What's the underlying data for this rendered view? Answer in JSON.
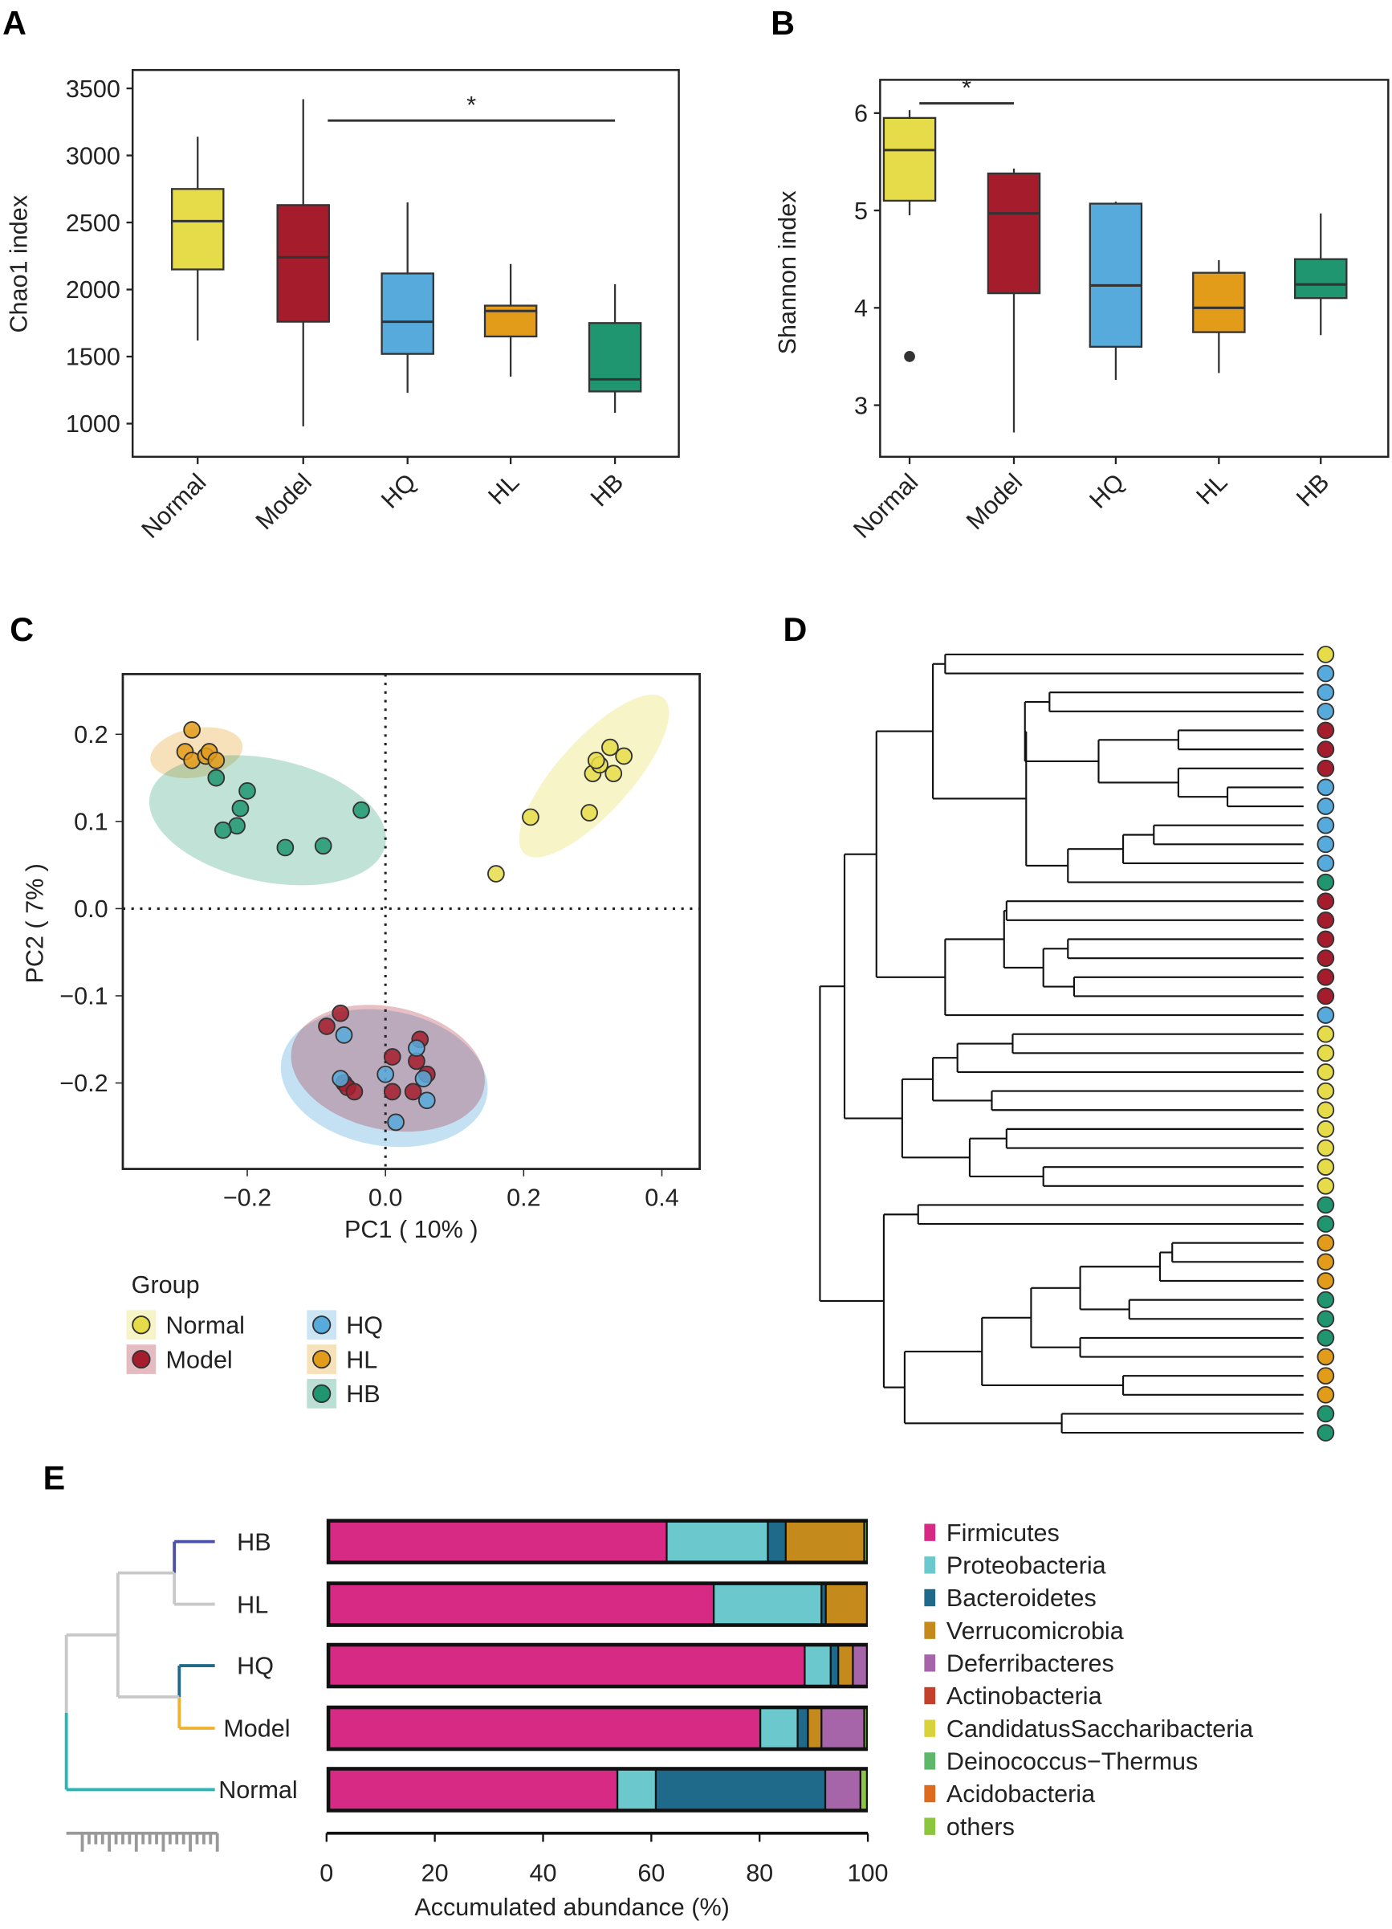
{
  "panel_labels": {
    "a": "A",
    "b": "B",
    "c": "C",
    "d": "D",
    "e": "E"
  },
  "groups": [
    "Normal",
    "Model",
    "HQ",
    "HL",
    "HB"
  ],
  "group_colors": {
    "Normal": "#e6dc4a",
    "Model": "#a51d2d",
    "HQ": "#57aadc",
    "HL": "#e39b1a",
    "HB": "#1f9670"
  },
  "chart_data": [
    {
      "type": "box",
      "panel": "A",
      "ylabel": "Chao1 index",
      "yticks": [
        1000,
        1500,
        2000,
        2500,
        3000,
        3500
      ],
      "ylim": [
        880,
        3650
      ],
      "categories": [
        "Normal",
        "Model",
        "HQ",
        "HL",
        "HB"
      ],
      "boxes": [
        {
          "min": 1620,
          "q1": 2150,
          "median": 2510,
          "q3": 2750,
          "max": 3140
        },
        {
          "min": 980,
          "q1": 1760,
          "median": 2240,
          "q3": 2630,
          "max": 3420
        },
        {
          "min": 1230,
          "q1": 1520,
          "median": 1760,
          "q3": 2120,
          "max": 2650
        },
        {
          "min": 1350,
          "q1": 1650,
          "median": 1840,
          "q3": 1880,
          "max": 2190
        },
        {
          "min": 1080,
          "q1": 1240,
          "median": 1330,
          "q3": 1750,
          "max": 2040
        }
      ],
      "outliers": [],
      "significance": {
        "from": "Model",
        "to": "HB",
        "y": 3260,
        "label": "*"
      }
    },
    {
      "type": "box",
      "panel": "B",
      "ylabel": "Shannon index",
      "yticks": [
        3,
        4,
        5,
        6
      ],
      "ylim": [
        2.5,
        6.35
      ],
      "categories": [
        "Normal",
        "Model",
        "HQ",
        "HL",
        "HB"
      ],
      "boxes": [
        {
          "min": 4.95,
          "q1": 5.1,
          "median": 5.62,
          "q3": 5.95,
          "max": 6.03
        },
        {
          "min": 2.72,
          "q1": 4.15,
          "median": 4.97,
          "q3": 5.38,
          "max": 5.43
        },
        {
          "min": 3.26,
          "q1": 3.6,
          "median": 4.23,
          "q3": 5.07,
          "max": 5.09
        },
        {
          "min": 3.33,
          "q1": 3.75,
          "median": 4.0,
          "q3": 4.36,
          "max": 4.49
        },
        {
          "min": 3.72,
          "q1": 4.1,
          "median": 4.24,
          "q3": 4.5,
          "max": 4.97
        }
      ],
      "outliers": [
        {
          "group": "Normal",
          "value": 3.5
        }
      ],
      "significance": {
        "from": "Normal",
        "to": "Model",
        "y": 6.1,
        "label": "*"
      }
    },
    {
      "type": "scatter",
      "panel": "C",
      "xlabel": "PC1 ( 10% )",
      "ylabel": "PC2 ( 7% )",
      "xticks": [
        -0.2,
        0.0,
        0.2,
        0.4
      ],
      "yticks": [
        -0.2,
        -0.1,
        0.0,
        0.1,
        0.2
      ],
      "xtick_labels": [
        "−0.2",
        "0.0",
        "0.2",
        "0.4"
      ],
      "ytick_labels": [
        "−0.2",
        "−0.1",
        "0.0",
        "0.1",
        "0.2"
      ],
      "legend_title": "Group",
      "series": [
        {
          "name": "Normal",
          "points": [
            [
              0.16,
              0.04
            ],
            [
              0.21,
              0.105
            ],
            [
              0.295,
              0.11
            ],
            [
              0.3,
              0.155
            ],
            [
              0.31,
              0.165
            ],
            [
              0.325,
              0.185
            ],
            [
              0.33,
              0.155
            ],
            [
              0.345,
              0.175
            ],
            [
              0.305,
              0.17
            ]
          ]
        },
        {
          "name": "Model",
          "points": [
            [
              -0.085,
              -0.135
            ],
            [
              -0.065,
              -0.12
            ],
            [
              -0.06,
              -0.2
            ],
            [
              -0.055,
              -0.205
            ],
            [
              -0.045,
              -0.21
            ],
            [
              0.01,
              -0.17
            ],
            [
              0.01,
              -0.21
            ],
            [
              0.04,
              -0.21
            ],
            [
              0.05,
              -0.15
            ],
            [
              0.045,
              -0.175
            ],
            [
              0.06,
              -0.19
            ]
          ]
        },
        {
          "name": "HQ",
          "points": [
            [
              -0.06,
              -0.145
            ],
            [
              -0.065,
              -0.195
            ],
            [
              0.0,
              -0.19
            ],
            [
              0.045,
              -0.16
            ],
            [
              0.055,
              -0.195
            ],
            [
              0.06,
              -0.22
            ],
            [
              0.015,
              -0.245
            ]
          ]
        },
        {
          "name": "HL",
          "points": [
            [
              -0.28,
              0.205
            ],
            [
              -0.29,
              0.18
            ],
            [
              -0.28,
              0.17
            ],
            [
              -0.26,
              0.175
            ],
            [
              -0.255,
              0.18
            ],
            [
              -0.245,
              0.17
            ]
          ]
        },
        {
          "name": "HB",
          "points": [
            [
              -0.245,
              0.15
            ],
            [
              -0.2,
              0.135
            ],
            [
              -0.21,
              0.115
            ],
            [
              -0.215,
              0.095
            ],
            [
              -0.235,
              0.09
            ],
            [
              -0.145,
              0.07
            ],
            [
              -0.09,
              0.072
            ],
            [
              -0.035,
              0.113
            ]
          ]
        }
      ]
    },
    {
      "type": "dendrogram",
      "panel": "D",
      "leaf_groups": [
        "Normal",
        "HQ",
        "HQ",
        "HQ",
        "Model",
        "Model",
        "Model",
        "HQ",
        "HQ",
        "HQ",
        "HQ",
        "HQ",
        "HB",
        "Model",
        "Model",
        "Model",
        "Model",
        "Model",
        "Model",
        "HQ",
        "Normal",
        "Normal",
        "Normal",
        "Normal",
        "Normal",
        "Normal",
        "Normal",
        "Normal",
        "Normal",
        "HB",
        "HB",
        "HL",
        "HL",
        "HL",
        "HB",
        "HB",
        "HB",
        "HL",
        "HL",
        "HL",
        "HB",
        "HB"
      ]
    },
    {
      "type": "bar",
      "orientation": "horizontal",
      "stacked": true,
      "panel": "E",
      "xlabel": "Accumulated abundance (%)",
      "xticks": [
        0,
        20,
        40,
        60,
        80,
        100
      ],
      "xlim": [
        0,
        100
      ],
      "categories": [
        "HB",
        "HL",
        "HQ",
        "Model",
        "Normal"
      ],
      "category_colors": [
        "#4b4fa8",
        "#d8d8d8",
        "#1f6a8a",
        "#f0b030",
        "#27b5b8"
      ],
      "series": [
        {
          "name": "Firmicutes",
          "color": "#d62a85",
          "values": [
            63.0,
            71.7,
            88.5,
            80.3,
            53.9
          ]
        },
        {
          "name": "Proteobacteria",
          "color": "#6bc8cc",
          "values": [
            18.7,
            19.9,
            4.8,
            6.9,
            7.1
          ]
        },
        {
          "name": "Bacteroidetes",
          "color": "#1f6a8a",
          "values": [
            3.3,
            0.8,
            1.4,
            1.9,
            31.3
          ]
        },
        {
          "name": "Verrucomicrobia",
          "color": "#c58a1c",
          "values": [
            14.5,
            7.6,
            2.7,
            2.5,
            0
          ]
        },
        {
          "name": "Deferribacteres",
          "color": "#a565a8",
          "values": [
            0,
            0,
            2.6,
            7.9,
            6.5
          ]
        },
        {
          "name": "Actinobacteria",
          "color": "#c4402a",
          "values": [
            0,
            0,
            0,
            0,
            0
          ]
        },
        {
          "name": "CandidatusSaccharibacteria",
          "color": "#d9d23a",
          "values": [
            0,
            0,
            0,
            0,
            0
          ]
        },
        {
          "name": "Deinococcus−Thermus",
          "color": "#5fb86a",
          "values": [
            0,
            0,
            0,
            0,
            0
          ]
        },
        {
          "name": "Acidobacteria",
          "color": "#e06a1c",
          "values": [
            0,
            0,
            0,
            0,
            0
          ]
        },
        {
          "name": "others",
          "color": "#8cc63f",
          "values": [
            0.5,
            0,
            0,
            0.5,
            1.2
          ]
        }
      ]
    }
  ]
}
